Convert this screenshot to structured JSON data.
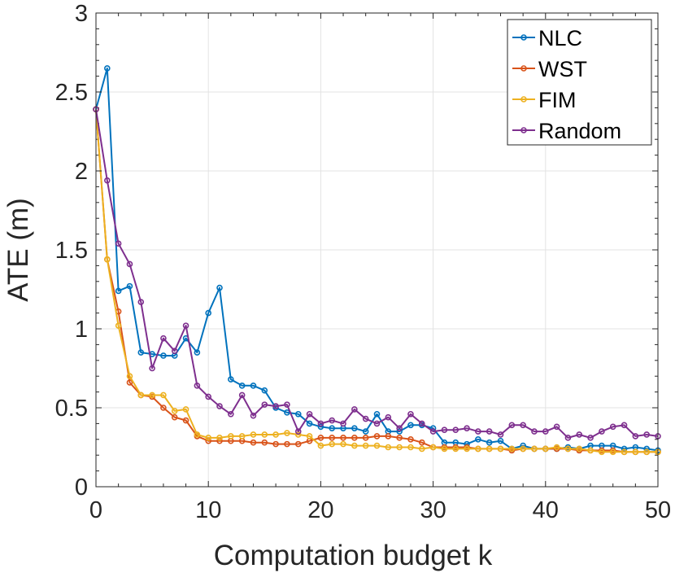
{
  "chart_data": {
    "type": "line",
    "title": "",
    "xlabel": "Computation budget k",
    "ylabel": "ATE (m)",
    "xlim": [
      0,
      50
    ],
    "ylim": [
      0,
      3
    ],
    "xticks": [
      0,
      10,
      20,
      30,
      40,
      50
    ],
    "yticks": [
      0,
      0.5,
      1,
      1.5,
      2,
      2.5,
      3
    ],
    "xtick_labels": [
      "0",
      "10",
      "20",
      "30",
      "40",
      "50"
    ],
    "ytick_labels": [
      "0",
      "0.5",
      "1",
      "1.5",
      "2",
      "2.5",
      "3"
    ],
    "grid": true,
    "legend_position": "top-right",
    "series": [
      {
        "name": "NLC",
        "color": "#0072BD",
        "x": [
          0,
          1,
          2,
          3,
          4,
          5,
          6,
          7,
          8,
          9,
          10,
          11,
          12,
          13,
          14,
          15,
          16,
          17,
          18,
          19,
          20,
          21,
          22,
          23,
          24,
          25,
          26,
          27,
          28,
          29,
          30,
          31,
          32,
          33,
          34,
          35,
          36,
          37,
          38,
          39,
          40,
          41,
          42,
          43,
          44,
          45,
          46,
          47,
          48,
          49,
          50
        ],
        "values": [
          2.39,
          2.65,
          1.24,
          1.27,
          0.85,
          0.84,
          0.83,
          0.83,
          0.94,
          0.85,
          1.1,
          1.26,
          0.68,
          0.64,
          0.64,
          0.61,
          0.5,
          0.47,
          0.46,
          0.4,
          0.38,
          0.37,
          0.37,
          0.37,
          0.35,
          0.46,
          0.35,
          0.35,
          0.39,
          0.39,
          0.37,
          0.28,
          0.28,
          0.27,
          0.3,
          0.28,
          0.29,
          0.24,
          0.26,
          0.24,
          0.24,
          0.24,
          0.25,
          0.24,
          0.26,
          0.26,
          0.26,
          0.24,
          0.25,
          0.24,
          0.23
        ]
      },
      {
        "name": "WST",
        "color": "#D95319",
        "x": [
          0,
          1,
          2,
          3,
          4,
          5,
          6,
          7,
          8,
          9,
          10,
          11,
          12,
          13,
          14,
          15,
          16,
          17,
          18,
          19,
          20,
          21,
          22,
          23,
          24,
          25,
          26,
          27,
          28,
          29,
          30,
          31,
          32,
          33,
          34,
          35,
          36,
          37,
          38,
          39,
          40,
          41,
          42,
          43,
          44,
          45,
          46,
          47,
          48,
          49,
          50
        ],
        "values": [
          2.39,
          1.44,
          1.11,
          0.66,
          0.58,
          0.57,
          0.5,
          0.44,
          0.42,
          0.32,
          0.29,
          0.29,
          0.29,
          0.29,
          0.28,
          0.28,
          0.27,
          0.27,
          0.27,
          0.29,
          0.31,
          0.31,
          0.31,
          0.31,
          0.31,
          0.32,
          0.32,
          0.31,
          0.3,
          0.28,
          0.25,
          0.25,
          0.25,
          0.25,
          0.24,
          0.24,
          0.24,
          0.23,
          0.24,
          0.24,
          0.24,
          0.24,
          0.24,
          0.23,
          0.23,
          0.23,
          0.23,
          0.22,
          0.22,
          0.22,
          0.22
        ]
      },
      {
        "name": "FIM",
        "color": "#EDB120",
        "x": [
          0,
          1,
          2,
          3,
          4,
          5,
          6,
          7,
          8,
          9,
          10,
          11,
          12,
          13,
          14,
          15,
          16,
          17,
          18,
          19,
          20,
          21,
          22,
          23,
          24,
          25,
          26,
          27,
          28,
          29,
          30,
          31,
          32,
          33,
          34,
          35,
          36,
          37,
          38,
          39,
          40,
          41,
          42,
          43,
          44,
          45,
          46,
          47,
          48,
          49,
          50
        ],
        "values": [
          2.39,
          1.44,
          1.02,
          0.7,
          0.58,
          0.58,
          0.58,
          0.48,
          0.49,
          0.33,
          0.31,
          0.31,
          0.32,
          0.32,
          0.33,
          0.33,
          0.33,
          0.34,
          0.33,
          0.32,
          0.26,
          0.27,
          0.27,
          0.26,
          0.26,
          0.26,
          0.25,
          0.25,
          0.25,
          0.24,
          0.25,
          0.24,
          0.24,
          0.24,
          0.24,
          0.24,
          0.24,
          0.24,
          0.24,
          0.24,
          0.24,
          0.25,
          0.24,
          0.24,
          0.23,
          0.22,
          0.22,
          0.22,
          0.22,
          0.22,
          0.22
        ]
      },
      {
        "name": "Random",
        "color": "#7E2F8E",
        "x": [
          0,
          1,
          2,
          3,
          4,
          5,
          6,
          7,
          8,
          9,
          10,
          11,
          12,
          13,
          14,
          15,
          16,
          17,
          18,
          19,
          20,
          21,
          22,
          23,
          24,
          25,
          26,
          27,
          28,
          29,
          30,
          31,
          32,
          33,
          34,
          35,
          36,
          37,
          38,
          39,
          40,
          41,
          42,
          43,
          44,
          45,
          46,
          47,
          48,
          49,
          50
        ],
        "values": [
          2.39,
          1.94,
          1.54,
          1.41,
          1.17,
          0.75,
          0.94,
          0.86,
          1.02,
          0.64,
          0.57,
          0.51,
          0.46,
          0.58,
          0.45,
          0.52,
          0.51,
          0.52,
          0.35,
          0.46,
          0.4,
          0.42,
          0.4,
          0.49,
          0.43,
          0.4,
          0.44,
          0.37,
          0.46,
          0.4,
          0.35,
          0.36,
          0.36,
          0.37,
          0.35,
          0.35,
          0.33,
          0.39,
          0.39,
          0.35,
          0.35,
          0.38,
          0.31,
          0.33,
          0.31,
          0.35,
          0.38,
          0.39,
          0.32,
          0.33,
          0.32
        ]
      }
    ]
  }
}
